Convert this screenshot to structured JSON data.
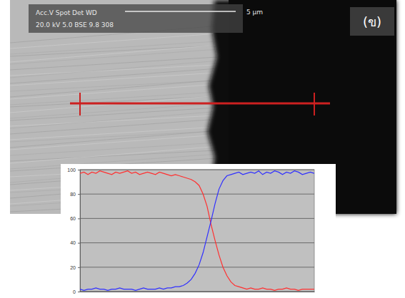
{
  "chart_data": {
    "type": "line",
    "annotations": [
      "Acc.V  Spot Det  WD",
      "20.0 kV 5.0  BSE 9.8  308",
      "5 µm",
      "(ข)"
    ],
    "x": [
      0,
      1,
      2,
      3,
      4,
      5,
      6,
      7,
      8,
      9,
      10,
      11,
      12,
      13,
      14,
      15,
      16,
      17,
      18,
      19,
      20,
      21,
      22,
      23,
      24,
      25,
      26,
      27,
      28,
      29,
      30,
      31,
      32,
      33,
      34,
      35,
      36,
      37,
      38,
      39,
      40,
      41,
      42,
      43,
      44,
      45,
      46,
      47,
      48,
      49,
      50,
      51,
      52,
      53,
      54,
      55,
      56,
      57,
      58,
      59
    ],
    "series": [
      {
        "color": "#ff3030",
        "values": [
          97,
          98,
          96,
          98,
          97,
          99,
          98,
          97,
          96,
          98,
          97,
          98,
          99,
          97,
          98,
          96,
          97,
          98,
          97,
          96,
          98,
          97,
          96,
          95,
          96,
          95,
          94,
          93,
          92,
          90,
          87,
          80,
          70,
          55,
          42,
          30,
          20,
          13,
          8,
          5,
          4,
          3,
          2,
          3,
          2,
          2,
          3,
          2,
          2,
          1,
          2,
          2,
          3,
          2,
          2,
          1,
          2,
          2,
          2,
          2
        ]
      },
      {
        "color": "#3030ff",
        "values": [
          2,
          1,
          2,
          2,
          3,
          2,
          2,
          1,
          2,
          2,
          3,
          2,
          2,
          2,
          1,
          2,
          3,
          2,
          2,
          2,
          3,
          2,
          3,
          3,
          4,
          4,
          5,
          7,
          10,
          15,
          22,
          32,
          45,
          58,
          72,
          84,
          91,
          95,
          96,
          97,
          98,
          96,
          97,
          98,
          97,
          99,
          96,
          98,
          97,
          99,
          98,
          96,
          98,
          97,
          99,
          98,
          96,
          97,
          98,
          97
        ]
      }
    ],
    "xlim": [
      0,
      59
    ],
    "ylim": [
      0,
      100
    ],
    "yticks": [
      0,
      20,
      40,
      60,
      80,
      100
    ],
    "grid": true,
    "tick_labels": "y"
  }
}
